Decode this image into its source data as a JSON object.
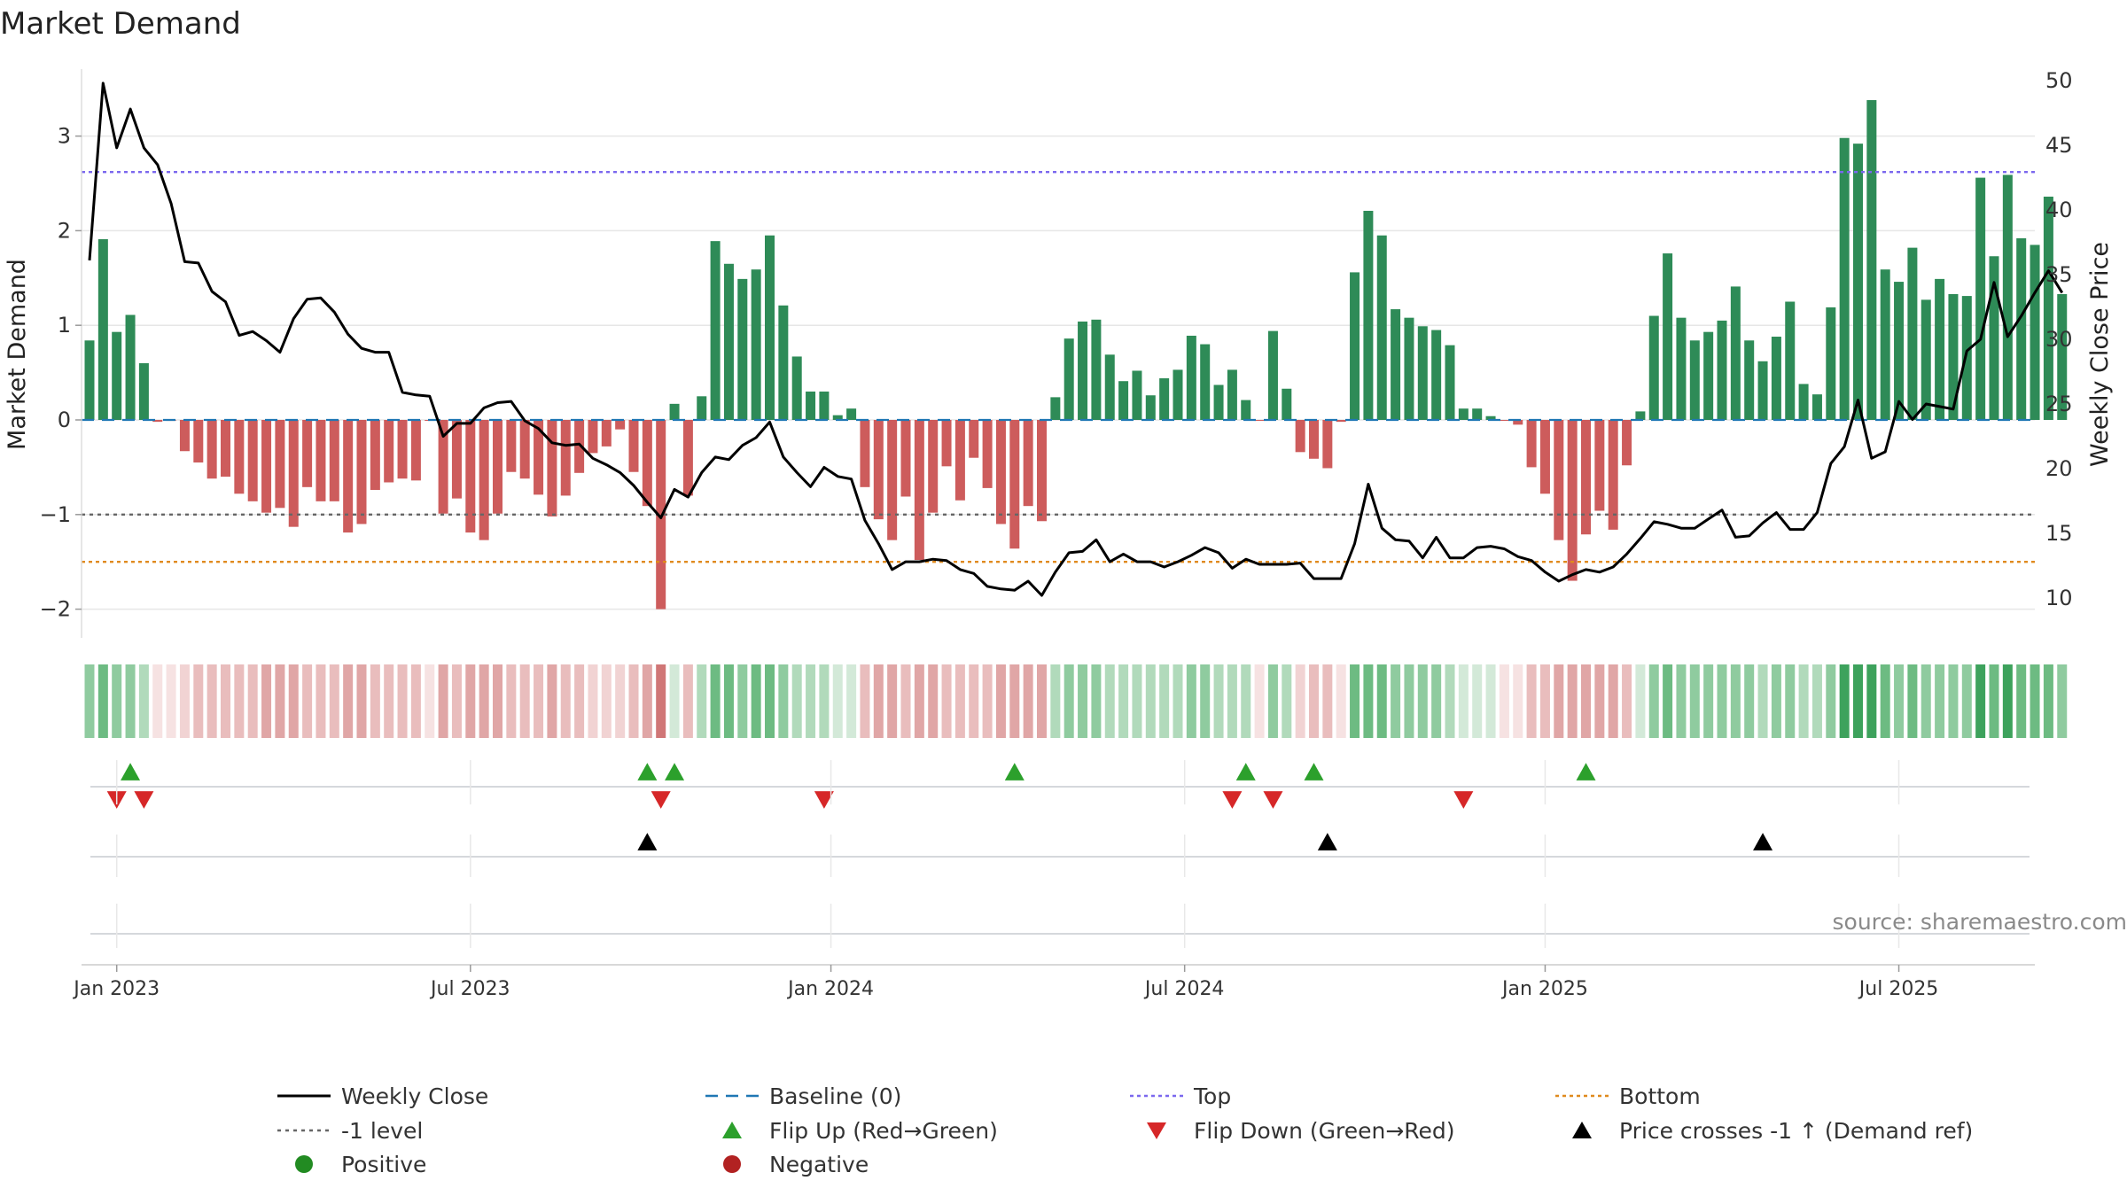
{
  "chart_data": {
    "type": "bar",
    "title": "Market Demand",
    "ylabel_left": "Market Demand",
    "ylabel_right": "Weekly Close Price",
    "ylim_left": [
      -2.2,
      3.55
    ],
    "ylim_right": [
      7.5,
      51.0
    ],
    "left_ticks": [
      {
        "v": 3,
        "label": "3"
      },
      {
        "v": 2,
        "label": "2"
      },
      {
        "v": 1,
        "label": "1"
      },
      {
        "v": 0,
        "label": "0"
      },
      {
        "v": -1,
        "label": "−1"
      },
      {
        "v": -2,
        "label": "−2"
      }
    ],
    "right_ticks": [
      {
        "v": 50,
        "label": "50"
      },
      {
        "v": 45,
        "label": "45"
      },
      {
        "v": 40,
        "label": "40"
      },
      {
        "v": 35,
        "label": "35"
      },
      {
        "v": 30,
        "label": "30"
      },
      {
        "v": 25,
        "label": "25"
      },
      {
        "v": 20,
        "label": "20"
      },
      {
        "v": 15,
        "label": "15"
      },
      {
        "v": 10,
        "label": "10"
      }
    ],
    "x_ticks": [
      {
        "i": 2,
        "label": "Jan 2023"
      },
      {
        "i": 28,
        "label": "Jul 2023"
      },
      {
        "i": 54.5,
        "label": "Jan 2024"
      },
      {
        "i": 80.5,
        "label": "Jul 2024"
      },
      {
        "i": 107,
        "label": "Jan 2025"
      },
      {
        "i": 133,
        "label": "Jul 2025"
      }
    ],
    "reference_lines": {
      "baseline": 0,
      "top": 2.62,
      "minus_one": -1,
      "bottom": -1.5
    },
    "demand": [
      0.84,
      1.91,
      0.93,
      1.11,
      0.6,
      -0.02,
      -0.01,
      -0.33,
      -0.45,
      -0.62,
      -0.6,
      -0.78,
      -0.86,
      -0.98,
      -0.93,
      -1.13,
      -0.71,
      -0.86,
      -0.86,
      -1.19,
      -1.1,
      -0.74,
      -0.66,
      -0.62,
      -0.64,
      -0.01,
      -0.99,
      -0.83,
      -1.19,
      -1.27,
      -0.99,
      -0.55,
      -0.62,
      -0.79,
      -1.02,
      -0.8,
      -0.56,
      -0.35,
      -0.28,
      -0.1,
      -0.55,
      -0.91,
      -2.0,
      0.17,
      -0.8,
      0.25,
      1.89,
      1.65,
      1.49,
      1.59,
      1.95,
      1.21,
      0.67,
      0.3,
      0.3,
      0.05,
      0.12,
      -0.71,
      -1.05,
      -1.27,
      -0.81,
      -1.48,
      -0.98,
      -0.49,
      -0.85,
      -0.4,
      -0.72,
      -1.1,
      -1.36,
      -0.91,
      -1.07,
      0.24,
      0.86,
      1.04,
      1.06,
      0.69,
      0.41,
      0.52,
      0.26,
      0.44,
      0.53,
      0.89,
      0.8,
      0.37,
      0.53,
      0.21,
      -0.01,
      0.94,
      0.33,
      -0.34,
      -0.41,
      -0.51,
      -0.02,
      1.56,
      2.21,
      1.95,
      1.17,
      1.08,
      0.99,
      0.95,
      0.79,
      0.12,
      0.12,
      0.04,
      -0.01,
      -0.05,
      -0.5,
      -0.78,
      -1.27,
      -1.7,
      -1.21,
      -0.96,
      -1.16,
      -0.48,
      0.09,
      1.1,
      1.76,
      1.08,
      0.84,
      0.93,
      1.05,
      1.41,
      0.84,
      0.62,
      0.88,
      1.25,
      0.38,
      0.27,
      1.19,
      2.98,
      2.92,
      3.38,
      1.59,
      1.46,
      1.82,
      1.27,
      1.49,
      1.33,
      1.31,
      2.56,
      1.73,
      2.59,
      1.92,
      1.85,
      2.36,
      1.33
    ],
    "price": [
      36.1,
      49.8,
      44.8,
      47.8,
      44.8,
      43.5,
      40.5,
      36.0,
      35.9,
      33.7,
      32.9,
      30.3,
      30.6,
      29.9,
      29.0,
      31.6,
      33.1,
      33.2,
      32.1,
      30.4,
      29.3,
      29.0,
      29.0,
      25.9,
      25.7,
      25.6,
      22.5,
      23.5,
      23.5,
      24.7,
      25.1,
      25.2,
      23.7,
      23.1,
      22.0,
      21.8,
      21.9,
      20.8,
      20.3,
      19.7,
      18.7,
      17.4,
      16.2,
      18.4,
      17.8,
      19.7,
      20.9,
      20.7,
      21.8,
      22.4,
      23.6,
      20.9,
      19.7,
      18.6,
      20.1,
      19.4,
      19.2,
      16.0,
      14.2,
      12.2,
      12.8,
      12.8,
      13.0,
      12.9,
      12.2,
      11.9,
      10.9,
      10.7,
      10.6,
      11.3,
      10.2,
      12.0,
      13.5,
      13.6,
      14.5,
      12.8,
      13.4,
      12.8,
      12.8,
      12.4,
      12.8,
      13.3,
      13.9,
      13.5,
      12.3,
      13.0,
      12.6,
      12.6,
      12.6,
      12.7,
      11.5,
      11.5,
      11.5,
      14.2,
      18.8,
      15.4,
      14.5,
      14.4,
      13.1,
      14.7,
      13.1,
      13.1,
      13.9,
      14.0,
      13.8,
      13.2,
      12.9,
      12.0,
      11.3,
      11.8,
      12.2,
      12.0,
      12.4,
      13.4,
      14.6,
      15.9,
      15.7,
      15.4,
      15.4,
      16.1,
      16.8,
      14.7,
      14.8,
      15.8,
      16.6,
      15.3,
      15.3,
      16.6,
      20.4,
      21.7,
      25.3,
      20.8,
      21.3,
      25.2,
      23.8,
      25.0,
      24.8,
      24.6,
      29.1,
      30.0,
      34.4,
      30.2,
      31.8,
      33.6,
      35.3,
      33.6
    ],
    "flip_up": [
      3,
      41,
      43,
      68,
      85,
      90,
      110
    ],
    "flip_down": [
      2,
      4,
      42,
      54,
      84,
      87,
      101
    ],
    "price_cross": [
      41,
      91,
      123
    ],
    "source": "source: sharemaestro.com",
    "legend": [
      {
        "key": "weekly_close",
        "label": "Weekly Close"
      },
      {
        "key": "baseline",
        "label": "Baseline (0)"
      },
      {
        "key": "top",
        "label": "Top"
      },
      {
        "key": "bottom",
        "label": "Bottom"
      },
      {
        "key": "minus_one",
        "label": "-1 level"
      },
      {
        "key": "flip_up",
        "label": "Flip Up (Red→Green)"
      },
      {
        "key": "flip_down",
        "label": "Flip Down (Green→Red)"
      },
      {
        "key": "price_cross",
        "label": "Price crosses -1 ↑ (Demand ref)"
      },
      {
        "key": "positive",
        "label": "Positive"
      },
      {
        "key": "negative",
        "label": "Negative"
      }
    ],
    "colors": {
      "positive_bar": "#2e8b57",
      "negative_bar": "#cd5c5c",
      "price_line": "#000000",
      "baseline": "#1f77b4",
      "top": "#7b68ee",
      "minus_one": "#666666",
      "bottom": "#e08a1e",
      "flip_up": "#2ca02c",
      "flip_down": "#d62728",
      "price_cross": "#000000",
      "positive_dot": "#228b22",
      "negative_dot": "#b22222"
    }
  }
}
